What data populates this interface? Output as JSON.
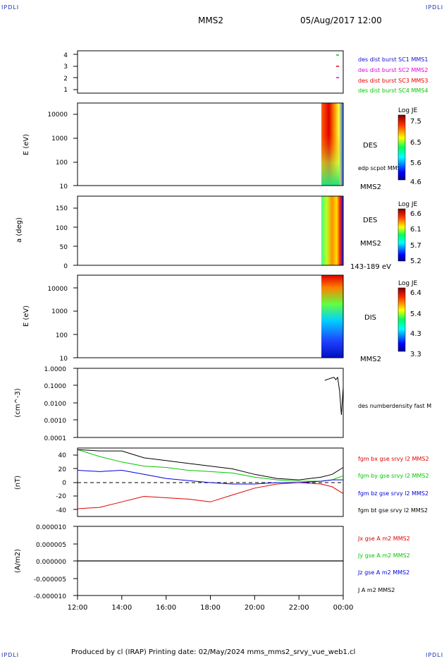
{
  "header": {
    "corner_left": "IPDLI",
    "corner_right": "IPDLI",
    "corner_bl": "IPDLI",
    "corner_br": "IPDLI",
    "spacecraft": "MMS2",
    "datetime": "05/Aug/2017 12:00"
  },
  "footer": {
    "text": "Produced by cl (IRAP)   Printing date: 02/May/2024   mms_mms2_srvy_vue_web1.cl"
  },
  "colors": {
    "red": "#e00000",
    "green": "#00c800",
    "blue": "#0000e0",
    "black": "#000000",
    "magenta": "#e000e0"
  },
  "time_axis": {
    "ticks": [
      "12:00",
      "14:00",
      "16:00",
      "18:00",
      "20:00",
      "22:00",
      "00:00"
    ]
  },
  "panels": {
    "burst": {
      "yticks": [
        "4",
        "3",
        "2",
        "1"
      ],
      "legend": [
        {
          "text": "des dist burst SC1 MMS1",
          "color": "#1010d0"
        },
        {
          "text": "des dist burst SC2 MMS2",
          "color": "#e000e0"
        },
        {
          "text": "des dist burst SC3 MMS3",
          "color": "#e00000"
        },
        {
          "text": "des dist burst SC4 MMS4",
          "color": "#00c800"
        }
      ]
    },
    "des_energy": {
      "ylabel": "E (eV)",
      "yticks": [
        "10000",
        "1000",
        "100",
        "10"
      ],
      "name": "DES",
      "sub": "edp scpot MMS2",
      "sc": "MMS2",
      "cbar_title": "Log JE",
      "cbar_ticks": [
        "7.5",
        "6.5",
        "5.6",
        "4.6"
      ]
    },
    "des_pitch": {
      "ylabel": "a (deg)",
      "yticks": [
        "150",
        "100",
        "50",
        "0"
      ],
      "name": "DES",
      "sc": "MMS2",
      "range": "143-189 eV",
      "cbar_title": "Log JE",
      "cbar_ticks": [
        "6.6",
        "6.1",
        "5.7",
        "5.2"
      ]
    },
    "dis_energy": {
      "ylabel": "E (eV)",
      "yticks": [
        "10000",
        "1000",
        "100",
        "10"
      ],
      "name": "DIS",
      "sc": "MMS2",
      "cbar_title": "Log JE",
      "cbar_ticks": [
        "6.4",
        "5.4",
        "4.3",
        "3.3"
      ]
    },
    "density": {
      "ylabel": "(cm^-3)",
      "yticks": [
        "1.0000",
        "0.1000",
        "0.0100",
        "0.0010",
        "0.0001"
      ],
      "legend": "des numberdensity fast M"
    },
    "bfield": {
      "ylabel": "(nT)",
      "yticks": [
        "40",
        "20",
        "0",
        "-20",
        "-40"
      ],
      "legend": [
        {
          "text": "fgm bx gse srvy l2 MMS2",
          "color": "#e00000"
        },
        {
          "text": "fgm by gse srvy l2 MMS2",
          "color": "#00c800"
        },
        {
          "text": "fgm bz gse srvy l2 MMS2",
          "color": "#0000e0"
        },
        {
          "text": "fgm bt gse srvy l2 MMS2",
          "color": "#000000"
        }
      ]
    },
    "current": {
      "ylabel": "(A/m2)",
      "yticks": [
        "0.000010",
        "0.000005",
        "0.000000",
        "-0.000005",
        "-0.000010"
      ],
      "legend": [
        {
          "text": "Jx gse A m2 MMS2",
          "color": "#e00000"
        },
        {
          "text": "Jy gse A m2 MMS2",
          "color": "#00c800"
        },
        {
          "text": "Jz gse A m2 MMS2",
          "color": "#0000e0"
        },
        {
          "text": "J A m2 MMS2",
          "color": "#000000"
        }
      ]
    }
  },
  "chart_data": [
    {
      "type": "scatter",
      "title": "",
      "ylabel": "",
      "ylim": [
        0.5,
        4.5
      ],
      "x": [
        "23:55"
      ],
      "series": [
        {
          "name": "des dist burst SC1 MMS1",
          "values": []
        },
        {
          "name": "des dist burst SC2 MMS2",
          "values": [
            2
          ]
        },
        {
          "name": "des dist burst SC3 MMS3",
          "values": [
            3
          ]
        },
        {
          "name": "des dist burst SC4 MMS4",
          "values": [
            4
          ]
        }
      ]
    },
    {
      "type": "heatmap",
      "title": "",
      "ylabel": "E (eV)",
      "ylim": [
        10,
        30000
      ],
      "yscale": "log",
      "xrange": [
        "23:10",
        "00:00"
      ],
      "colorbar": {
        "title": "Log JE",
        "range": [
          4.6,
          7.5
        ]
      }
    },
    {
      "type": "heatmap",
      "title": "",
      "ylabel": "a (deg)",
      "ylim": [
        0,
        180
      ],
      "xrange": [
        "23:10",
        "00:00"
      ],
      "colorbar": {
        "title": "Log JE",
        "range": [
          5.2,
          6.6
        ]
      }
    },
    {
      "type": "heatmap",
      "title": "",
      "ylabel": "E (eV)",
      "ylim": [
        10,
        30000
      ],
      "yscale": "log",
      "xrange": [
        "23:10",
        "00:00"
      ],
      "colorbar": {
        "title": "Log JE",
        "range": [
          3.3,
          6.4
        ]
      }
    },
    {
      "type": "line",
      "title": "",
      "ylabel": "(cm^-3)",
      "yscale": "log",
      "ylim": [
        0.0001,
        1.0
      ],
      "x": [
        "23:10",
        "23:20",
        "23:30",
        "23:35",
        "23:40",
        "23:45",
        "23:50",
        "23:55",
        "00:00"
      ],
      "series": [
        {
          "name": "des numberdensity fast M",
          "values": [
            0.2,
            0.24,
            0.28,
            0.3,
            0.22,
            0.3,
            0.05,
            0.002,
            0.08
          ]
        }
      ]
    },
    {
      "type": "line",
      "title": "",
      "ylabel": "(nT)",
      "ylim": [
        -48,
        50
      ],
      "x": [
        "12:00",
        "13:00",
        "14:00",
        "15:00",
        "16:00",
        "17:00",
        "18:00",
        "19:00",
        "20:00",
        "21:00",
        "22:00",
        "23:00",
        "23:30",
        "00:00"
      ],
      "series": [
        {
          "name": "fgm bx gse srvy l2 MMS2",
          "values": [
            -38,
            -36,
            -28,
            -20,
            -22,
            -24,
            -28,
            -18,
            -8,
            -2,
            0,
            -2,
            -6,
            -16
          ]
        },
        {
          "name": "fgm by gse srvy l2 MMS2",
          "values": [
            48,
            38,
            30,
            24,
            22,
            18,
            16,
            14,
            8,
            4,
            2,
            2,
            4,
            10
          ]
        },
        {
          "name": "fgm bz gse srvy l2 MMS2",
          "values": [
            18,
            16,
            18,
            12,
            6,
            3,
            0,
            -2,
            -2,
            0,
            0,
            2,
            4,
            4
          ]
        },
        {
          "name": "fgm bt gse srvy l2 MMS2",
          "values": [
            48,
            46,
            46,
            36,
            32,
            28,
            24,
            20,
            12,
            6,
            4,
            8,
            12,
            22
          ]
        }
      ]
    },
    {
      "type": "line",
      "title": "",
      "ylabel": "(A/m2)",
      "ylim": [
        -1e-05,
        1e-05
      ],
      "x": [
        "12:00",
        "18:00",
        "00:00"
      ],
      "series": [
        {
          "name": "J A m2 MMS2",
          "values": [
            0.0,
            0.0,
            0.0
          ]
        }
      ]
    }
  ]
}
